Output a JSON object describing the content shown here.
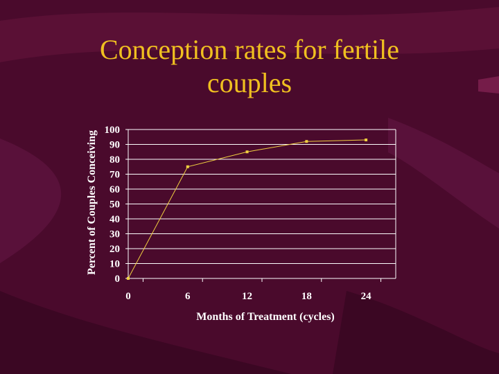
{
  "slide": {
    "title_line1": "Conception rates for fertile",
    "title_line2": "couples"
  },
  "colors": {
    "background": "#4a0a2c",
    "title": "#f0c020",
    "series": "#f0d040",
    "gridline": "#ffffff",
    "axis_text": "#ffffff"
  },
  "chart_data": {
    "type": "line",
    "title": "",
    "xlabel": "Months of Treatment (cycles)",
    "ylabel": "Percent of Couples Conceiving",
    "x": [
      0,
      6,
      12,
      18,
      24
    ],
    "x_tick_labels": [
      "0",
      "6",
      "12",
      "18",
      "24"
    ],
    "xlim": [
      0,
      27
    ],
    "ylim": [
      0,
      100
    ],
    "y_ticks": [
      0,
      10,
      20,
      30,
      40,
      50,
      60,
      70,
      80,
      90,
      100
    ],
    "y_tick_labels": [
      "0",
      "10",
      "20",
      "30",
      "40",
      "50",
      "60",
      "70",
      "80",
      "90",
      "100"
    ],
    "grid": true,
    "legend": "none",
    "series": [
      {
        "values": [
          0,
          75,
          85,
          92,
          93
        ]
      }
    ]
  }
}
